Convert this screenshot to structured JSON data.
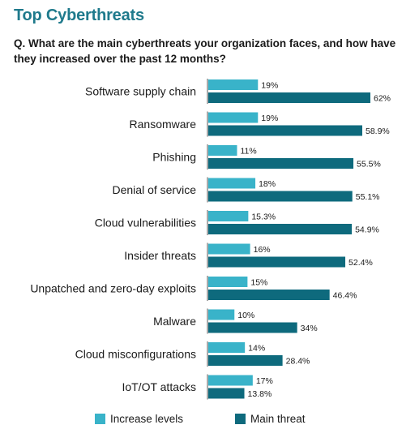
{
  "page": {
    "title": "Top Cyberthreats",
    "question": "Q. What are the main cyberthreats your organization faces, and how have they increased over the past 12 months?"
  },
  "colors": {
    "increase": "#39b3c9",
    "main": "#0e6a7d",
    "axis": "#555555",
    "title": "#1f7a8c"
  },
  "chart_data": {
    "type": "bar",
    "orientation": "horizontal",
    "categories": [
      "Software supply chain",
      "Ransomware",
      "Phishing",
      "Denial of service",
      "Cloud vulnerabilities",
      "Insider threats",
      "Unpatched and zero-day exploits",
      "Malware",
      "Cloud misconfigurations",
      "IoT/OT attacks"
    ],
    "series": [
      {
        "name": "Increase levels",
        "values": [
          19,
          19,
          11,
          18,
          15.3,
          16,
          15,
          10,
          14,
          17
        ],
        "labels": [
          "19%",
          "19%",
          "11%",
          "18%",
          "15.3%",
          "16%",
          "15%",
          "10%",
          "14%",
          "17%"
        ]
      },
      {
        "name": "Main threat",
        "values": [
          62,
          58.9,
          55.5,
          55.1,
          54.9,
          52.4,
          46.4,
          34,
          28.4,
          13.8
        ],
        "labels": [
          "62%",
          "58.9%",
          "55.5%",
          "55.1%",
          "54.9%",
          "52.4%",
          "46.4%",
          "34%",
          "28.4%",
          "13.8%"
        ]
      }
    ],
    "unit": "%",
    "xlim": [
      0,
      100
    ],
    "grid": false,
    "legend_position": "bottom"
  }
}
